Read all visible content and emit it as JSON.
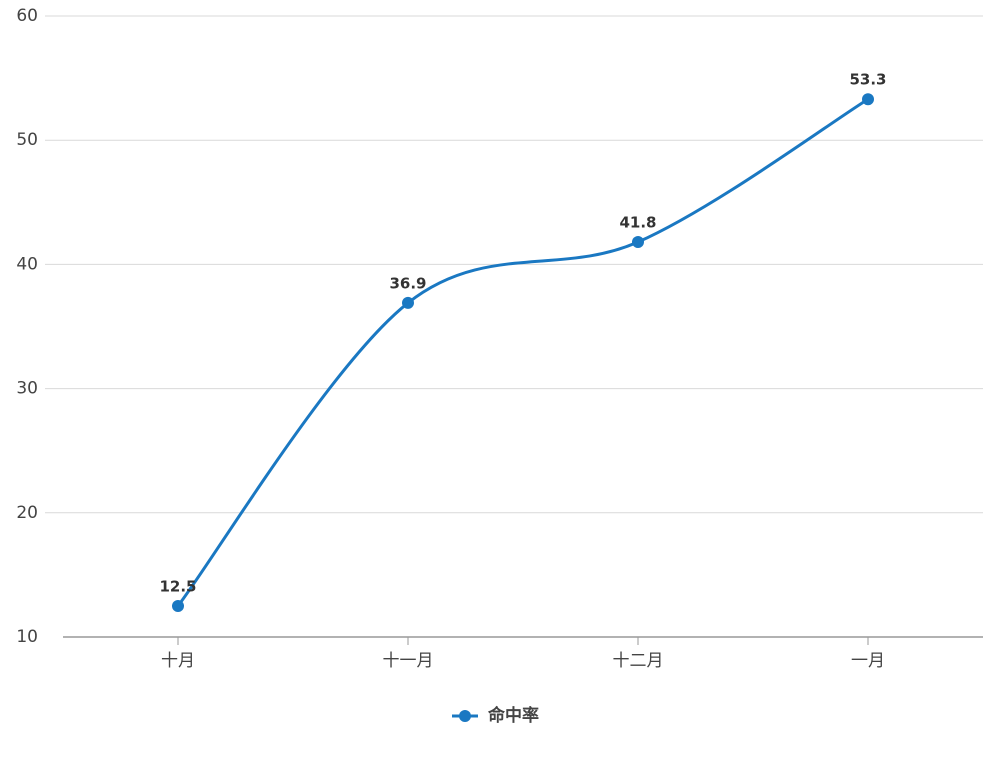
{
  "chart_data": {
    "type": "line",
    "categories": [
      "十月",
      "十一月",
      "十二月",
      "一月"
    ],
    "series": [
      {
        "name": "命中率",
        "color": "#1a78c2",
        "values": [
          12.5,
          36.9,
          41.8,
          53.3
        ]
      }
    ],
    "ylim": [
      10,
      60
    ],
    "yticks": [
      10,
      20,
      30,
      40,
      50,
      60
    ],
    "grid": true,
    "smooth": true,
    "legend": "bottom"
  }
}
